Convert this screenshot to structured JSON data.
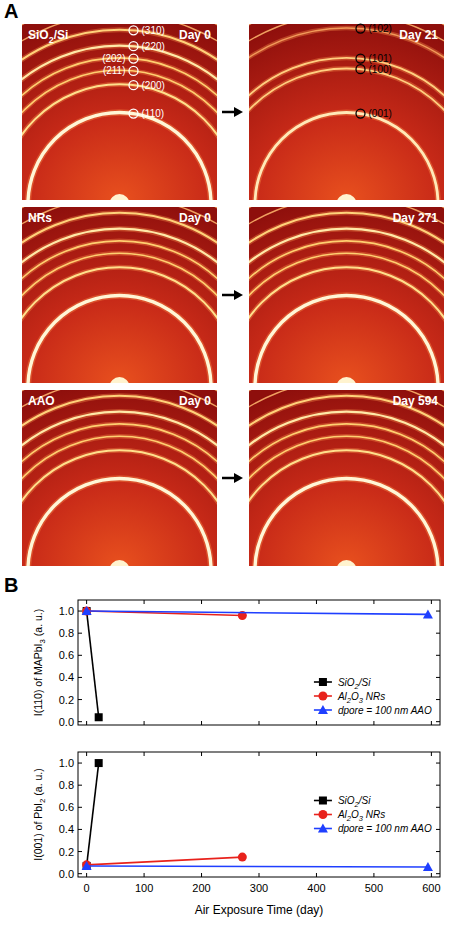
{
  "panel_a": {
    "label": "A",
    "images": [
      {
        "label": "SiO2/Si",
        "day": "Day 0",
        "peaks": [
          "(310)",
          "(220)",
          "(202)",
          "(211)",
          "(200)",
          "(110)"
        ]
      },
      {
        "day": "Day 21",
        "peaks": [
          "(102)",
          "(101)",
          "(100)",
          "(001)"
        ]
      },
      {
        "label": "NRs",
        "day": "Day 0"
      },
      {
        "day": "Day 271"
      },
      {
        "label": "AAO",
        "day": "Day 0"
      },
      {
        "day": "Day 594"
      }
    ]
  },
  "panel_b": {
    "label": "B"
  },
  "chart_data": [
    {
      "type": "line",
      "ylabel": "I(110) of MAPbI3 (a. u.)",
      "xlim": [
        -15,
        615
      ],
      "xticks": [
        0,
        100,
        200,
        300,
        400,
        500,
        600
      ],
      "ylim": [
        -0.03,
        1.1
      ],
      "yticks": [
        {
          "value": 0,
          "label": "0.0"
        },
        {
          "value": 0.2,
          "label": "0.2"
        },
        {
          "value": 0.4,
          "label": "0.4"
        },
        {
          "value": 0.6,
          "label": "0.6"
        },
        {
          "value": 0.8,
          "label": "0.8"
        },
        {
          "value": 1,
          "label": "1.0"
        }
      ],
      "tick_labels": "y",
      "legend": "lower right",
      "series": [
        {
          "name": "SiO2/Si",
          "color": "#000000",
          "marker": "square",
          "x": [
            0,
            21
          ],
          "values": [
            1.0,
            0.04
          ]
        },
        {
          "name": "Al2O3 NRs",
          "color": "#e8221c",
          "marker": "circle",
          "x": [
            0,
            271
          ],
          "values": [
            1.0,
            0.96
          ]
        },
        {
          "name": "dpore = 100 nm AAO",
          "color": "#1f3fff",
          "marker": "triangle",
          "x": [
            0,
            594
          ],
          "values": [
            1.0,
            0.97
          ]
        }
      ]
    },
    {
      "type": "line",
      "ylabel": "I(001) of PbI2 (a. u.)",
      "xlabel": "Air Exposure Time (day)",
      "xlim": [
        -15,
        615
      ],
      "xticks": [
        0,
        100,
        200,
        300,
        400,
        500,
        600
      ],
      "ylim": [
        -0.03,
        1.1
      ],
      "yticks": [
        {
          "value": 0,
          "label": "0.0"
        },
        {
          "value": 0.2,
          "label": "0.2"
        },
        {
          "value": 0.4,
          "label": "0.4"
        },
        {
          "value": 0.6,
          "label": "0.6"
        },
        {
          "value": 0.8,
          "label": "0.8"
        },
        {
          "value": 1,
          "label": "1.0"
        }
      ],
      "legend": "right",
      "series": [
        {
          "name": "SiO2/Si",
          "color": "#000000",
          "marker": "square",
          "x": [
            0,
            21
          ],
          "values": [
            0.07,
            1.0
          ]
        },
        {
          "name": "Al2O3 NRs",
          "color": "#e8221c",
          "marker": "circle",
          "x": [
            0,
            271
          ],
          "values": [
            0.08,
            0.15
          ]
        },
        {
          "name": "dpore = 100 nm AAO",
          "color": "#1f3fff",
          "marker": "triangle",
          "x": [
            0,
            594
          ],
          "values": [
            0.07,
            0.06
          ]
        }
      ]
    }
  ]
}
